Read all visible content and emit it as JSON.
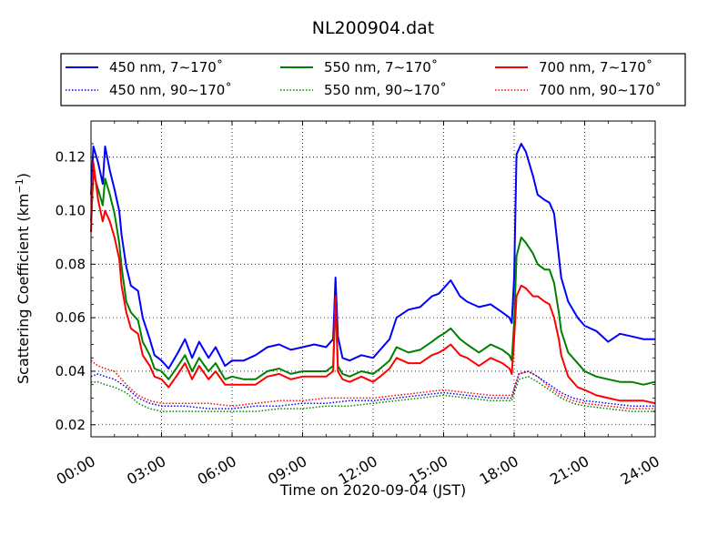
{
  "chart_data": {
    "type": "line",
    "title": "NL200904.dat",
    "xlabel": "Time on 2020-09-04 (JST)",
    "ylabel_main": "Scattering Coefficient (km",
    "ylabel_sup": "−1",
    "ylabel_close": ")",
    "x_unit": "hour",
    "xlim": [
      0,
      24
    ],
    "ylim": [
      0.0155,
      0.1335
    ],
    "xticks": [
      {
        "value": 0,
        "label": "00:00"
      },
      {
        "value": 3,
        "label": "03:00"
      },
      {
        "value": 6,
        "label": "06:00"
      },
      {
        "value": 9,
        "label": "09:00"
      },
      {
        "value": 12,
        "label": "12:00"
      },
      {
        "value": 15,
        "label": "15:00"
      },
      {
        "value": 18,
        "label": "18:00"
      },
      {
        "value": 21,
        "label": "21:00"
      },
      {
        "value": 24,
        "label": "24:00"
      }
    ],
    "yticks": [
      {
        "value": 0.02,
        "label": "0.02"
      },
      {
        "value": 0.04,
        "label": "0.04"
      },
      {
        "value": 0.06,
        "label": "0.06"
      },
      {
        "value": 0.08,
        "label": "0.08"
      },
      {
        "value": 0.1,
        "label": "0.10"
      },
      {
        "value": 0.12,
        "label": "0.12"
      }
    ],
    "grid": true,
    "legend_position": "top",
    "series": [
      {
        "name": "450 nm, 7∼170˚",
        "color": "#0000ff",
        "style": "solid",
        "x": [
          0,
          0.1,
          0.3,
          0.5,
          0.6,
          0.8,
          1.0,
          1.2,
          1.3,
          1.5,
          1.7,
          2.0,
          2.2,
          2.5,
          2.7,
          3.0,
          3.3,
          3.7,
          4.0,
          4.3,
          4.6,
          5.0,
          5.3,
          5.7,
          6.0,
          6.5,
          7.0,
          7.5,
          8.0,
          8.5,
          9.0,
          9.5,
          10.0,
          10.3,
          10.4,
          10.5,
          10.7,
          11.0,
          11.5,
          12.0,
          12.3,
          12.7,
          13.0,
          13.5,
          14.0,
          14.5,
          14.8,
          15.0,
          15.3,
          15.7,
          16.0,
          16.5,
          17.0,
          17.5,
          17.8,
          17.9,
          18.0,
          18.1,
          18.3,
          18.5,
          18.8,
          19.0,
          19.3,
          19.5,
          19.7,
          19.9,
          20.0,
          20.3,
          20.7,
          21.0,
          21.5,
          22.0,
          22.5,
          23.0,
          23.5,
          24.0
        ],
        "y": [
          0.106,
          0.124,
          0.118,
          0.11,
          0.124,
          0.115,
          0.108,
          0.1,
          0.091,
          0.079,
          0.072,
          0.07,
          0.06,
          0.052,
          0.046,
          0.044,
          0.041,
          0.047,
          0.052,
          0.045,
          0.051,
          0.045,
          0.049,
          0.042,
          0.044,
          0.044,
          0.046,
          0.049,
          0.05,
          0.048,
          0.049,
          0.05,
          0.049,
          0.052,
          0.075,
          0.053,
          0.045,
          0.044,
          0.046,
          0.045,
          0.048,
          0.052,
          0.06,
          0.063,
          0.064,
          0.068,
          0.069,
          0.071,
          0.074,
          0.068,
          0.066,
          0.064,
          0.065,
          0.062,
          0.06,
          0.058,
          0.075,
          0.121,
          0.125,
          0.122,
          0.113,
          0.106,
          0.104,
          0.103,
          0.099,
          0.083,
          0.075,
          0.066,
          0.06,
          0.057,
          0.055,
          0.051,
          0.054,
          0.053,
          0.052,
          0.052
        ]
      },
      {
        "name": "550 nm, 7∼170˚",
        "color": "#008000",
        "style": "solid",
        "x": [
          0,
          0.1,
          0.3,
          0.5,
          0.6,
          0.8,
          1.0,
          1.2,
          1.3,
          1.5,
          1.7,
          2.0,
          2.2,
          2.5,
          2.7,
          3.0,
          3.3,
          3.7,
          4.0,
          4.3,
          4.6,
          5.0,
          5.3,
          5.7,
          6.0,
          6.5,
          7.0,
          7.5,
          8.0,
          8.5,
          9.0,
          9.5,
          10.0,
          10.3,
          10.4,
          10.5,
          10.7,
          11.0,
          11.5,
          12.0,
          12.3,
          12.7,
          13.0,
          13.5,
          14.0,
          14.5,
          14.8,
          15.0,
          15.3,
          15.7,
          16.0,
          16.5,
          17.0,
          17.5,
          17.8,
          17.9,
          18.0,
          18.1,
          18.3,
          18.5,
          18.8,
          19.0,
          19.3,
          19.5,
          19.7,
          19.9,
          20.0,
          20.3,
          20.7,
          21.0,
          21.5,
          22.0,
          22.5,
          23.0,
          23.5,
          24.0
        ],
        "y": [
          0.096,
          0.114,
          0.108,
          0.102,
          0.112,
          0.106,
          0.099,
          0.088,
          0.079,
          0.066,
          0.062,
          0.059,
          0.051,
          0.046,
          0.041,
          0.04,
          0.037,
          0.042,
          0.046,
          0.04,
          0.045,
          0.04,
          0.043,
          0.037,
          0.038,
          0.037,
          0.037,
          0.04,
          0.041,
          0.039,
          0.04,
          0.04,
          0.04,
          0.042,
          0.067,
          0.042,
          0.039,
          0.038,
          0.04,
          0.039,
          0.041,
          0.044,
          0.049,
          0.047,
          0.048,
          0.051,
          0.053,
          0.054,
          0.056,
          0.052,
          0.05,
          0.047,
          0.05,
          0.048,
          0.046,
          0.044,
          0.058,
          0.083,
          0.09,
          0.088,
          0.084,
          0.08,
          0.078,
          0.078,
          0.073,
          0.062,
          0.055,
          0.047,
          0.043,
          0.04,
          0.038,
          0.037,
          0.036,
          0.036,
          0.035,
          0.036
        ]
      },
      {
        "name": "700 nm, 7∼170˚",
        "color": "#ff0000",
        "style": "solid",
        "x": [
          0,
          0.1,
          0.3,
          0.5,
          0.6,
          0.8,
          1.0,
          1.2,
          1.3,
          1.5,
          1.7,
          2.0,
          2.2,
          2.5,
          2.7,
          3.0,
          3.3,
          3.7,
          4.0,
          4.3,
          4.6,
          5.0,
          5.3,
          5.7,
          6.0,
          6.5,
          7.0,
          7.5,
          8.0,
          8.5,
          9.0,
          9.5,
          10.0,
          10.3,
          10.4,
          10.5,
          10.7,
          11.0,
          11.5,
          12.0,
          12.3,
          12.7,
          13.0,
          13.5,
          14.0,
          14.5,
          14.8,
          15.0,
          15.3,
          15.7,
          16.0,
          16.5,
          17.0,
          17.5,
          17.8,
          17.9,
          18.0,
          18.1,
          18.3,
          18.5,
          18.8,
          19.0,
          19.3,
          19.5,
          19.7,
          19.9,
          20.0,
          20.3,
          20.7,
          21.0,
          21.5,
          22.0,
          22.5,
          23.0,
          23.5,
          24.0
        ],
        "y": [
          0.092,
          0.118,
          0.104,
          0.096,
          0.1,
          0.096,
          0.09,
          0.082,
          0.072,
          0.062,
          0.056,
          0.054,
          0.046,
          0.042,
          0.038,
          0.037,
          0.034,
          0.039,
          0.043,
          0.037,
          0.042,
          0.037,
          0.04,
          0.035,
          0.035,
          0.035,
          0.035,
          0.038,
          0.039,
          0.037,
          0.038,
          0.038,
          0.038,
          0.04,
          0.068,
          0.04,
          0.037,
          0.036,
          0.038,
          0.036,
          0.038,
          0.041,
          0.045,
          0.043,
          0.043,
          0.046,
          0.047,
          0.048,
          0.05,
          0.046,
          0.045,
          0.042,
          0.045,
          0.043,
          0.041,
          0.039,
          0.052,
          0.068,
          0.072,
          0.071,
          0.068,
          0.068,
          0.066,
          0.065,
          0.06,
          0.052,
          0.046,
          0.038,
          0.034,
          0.033,
          0.031,
          0.03,
          0.029,
          0.029,
          0.029,
          0.028
        ]
      },
      {
        "name": "450 nm, 90∼170˚",
        "color": "#0000ff",
        "style": "dotted",
        "x": [
          0,
          0.3,
          0.6,
          1.0,
          1.5,
          2.0,
          2.5,
          3.0,
          3.5,
          4.0,
          5.0,
          6.0,
          7.0,
          8.0,
          9.0,
          10.0,
          11.0,
          12.0,
          13.0,
          14.0,
          15.0,
          16.0,
          17.0,
          17.9,
          18.2,
          18.6,
          19.0,
          19.5,
          20.0,
          20.5,
          21.0,
          22.0,
          23.0,
          24.0
        ],
        "y": [
          0.038,
          0.039,
          0.038,
          0.037,
          0.034,
          0.03,
          0.028,
          0.027,
          0.027,
          0.027,
          0.026,
          0.026,
          0.027,
          0.027,
          0.028,
          0.028,
          0.029,
          0.029,
          0.03,
          0.031,
          0.032,
          0.031,
          0.03,
          0.03,
          0.039,
          0.04,
          0.038,
          0.035,
          0.032,
          0.03,
          0.029,
          0.028,
          0.027,
          0.027
        ]
      },
      {
        "name": "550 nm, 90∼170˚",
        "color": "#008000",
        "style": "dotted",
        "x": [
          0,
          0.3,
          0.6,
          1.0,
          1.5,
          2.0,
          2.5,
          3.0,
          3.5,
          4.0,
          5.0,
          6.0,
          7.0,
          8.0,
          9.0,
          10.0,
          11.0,
          12.0,
          13.0,
          14.0,
          15.0,
          16.0,
          17.0,
          17.9,
          18.2,
          18.6,
          19.0,
          19.5,
          20.0,
          20.5,
          21.0,
          22.0,
          23.0,
          24.0
        ],
        "y": [
          0.036,
          0.036,
          0.035,
          0.034,
          0.032,
          0.028,
          0.026,
          0.025,
          0.025,
          0.025,
          0.025,
          0.025,
          0.025,
          0.026,
          0.026,
          0.027,
          0.027,
          0.028,
          0.029,
          0.03,
          0.031,
          0.03,
          0.029,
          0.029,
          0.037,
          0.038,
          0.036,
          0.033,
          0.03,
          0.028,
          0.027,
          0.026,
          0.025,
          0.025
        ]
      },
      {
        "name": "700 nm, 90∼170˚",
        "color": "#ff0000",
        "style": "dotted",
        "x": [
          0,
          0.3,
          0.6,
          1.0,
          1.5,
          2.0,
          2.5,
          3.0,
          3.5,
          4.0,
          5.0,
          6.0,
          7.0,
          8.0,
          9.0,
          10.0,
          11.0,
          12.0,
          13.0,
          14.0,
          15.0,
          16.0,
          17.0,
          17.9,
          18.2,
          18.6,
          19.0,
          19.5,
          20.0,
          20.5,
          21.0,
          22.0,
          23.0,
          24.0
        ],
        "y": [
          0.044,
          0.042,
          0.041,
          0.04,
          0.035,
          0.031,
          0.029,
          0.028,
          0.028,
          0.028,
          0.028,
          0.027,
          0.028,
          0.029,
          0.029,
          0.03,
          0.03,
          0.03,
          0.031,
          0.032,
          0.033,
          0.032,
          0.031,
          0.031,
          0.039,
          0.04,
          0.038,
          0.034,
          0.031,
          0.029,
          0.028,
          0.027,
          0.026,
          0.026
        ]
      }
    ],
    "legend_order": [
      0,
      1,
      2,
      3,
      4,
      5
    ]
  }
}
